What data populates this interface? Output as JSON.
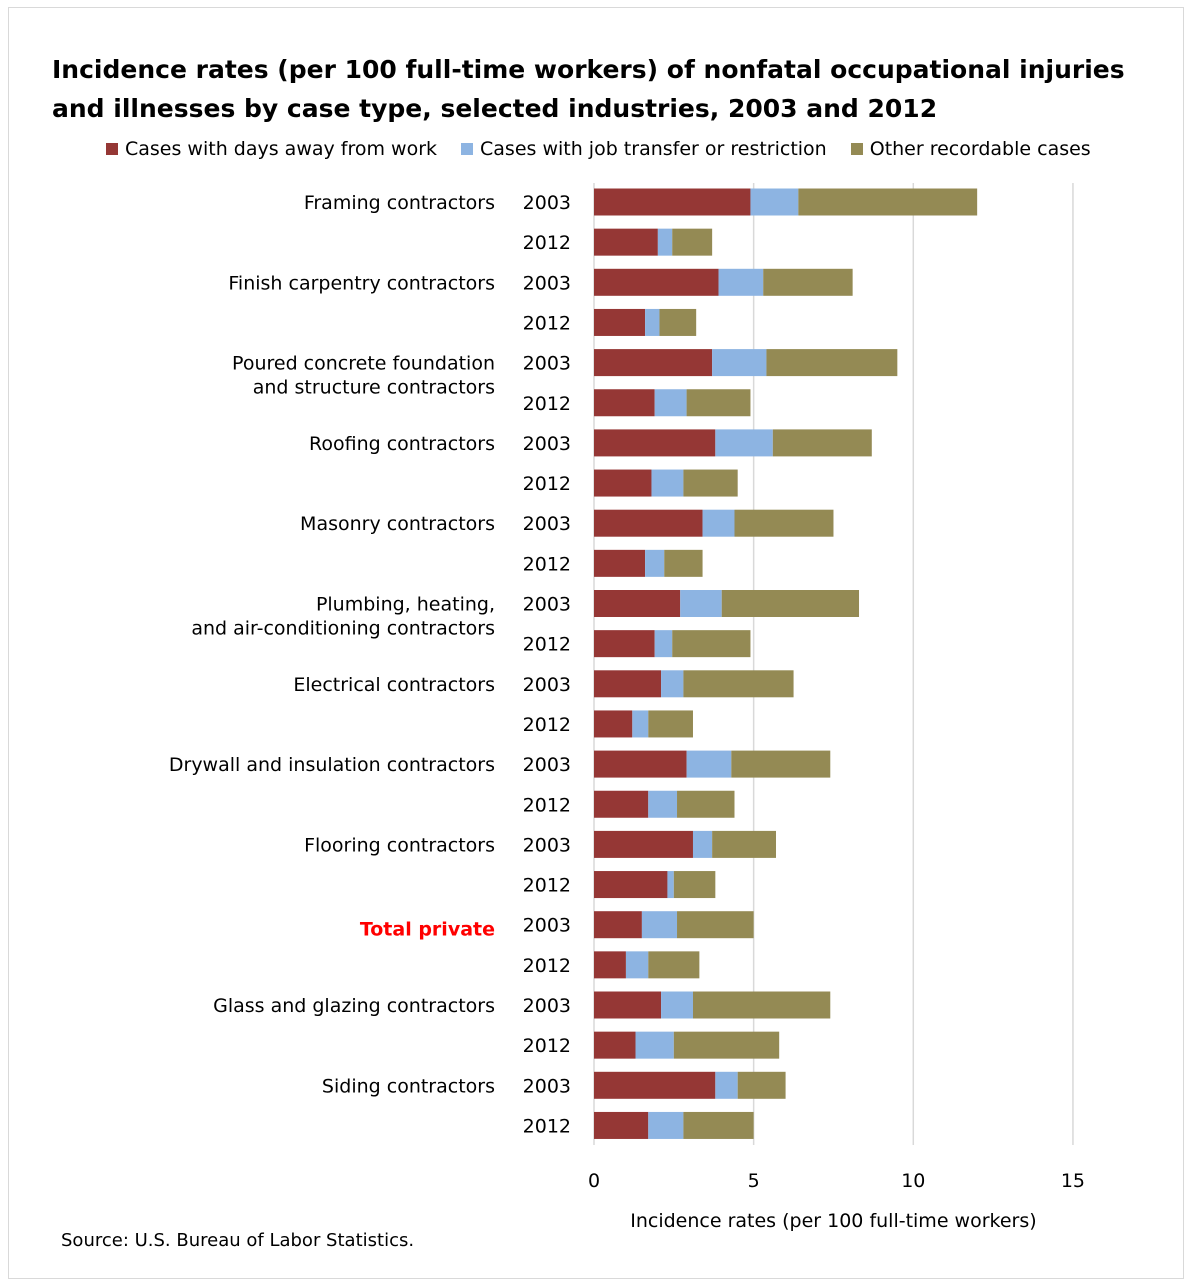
{
  "chart_data": {
    "type": "bar",
    "orientation": "horizontal",
    "stacked": true,
    "title": "Incidence rates (per 100 full-time workers) of nonfatal occupational injuries and illnesses by case type, selected industries, 2003 and 2012",
    "xlabel": "Incidence rates (per 100 full-time workers)",
    "xlim": [
      0,
      15
    ],
    "xticks": [
      "0",
      "5",
      "10",
      "15"
    ],
    "grid": true,
    "legend_position": "top",
    "series": [
      {
        "name": "Cases with days away from work",
        "color": "#953735"
      },
      {
        "name": "Cases with job transfer or restriction",
        "color": "#8db4e2"
      },
      {
        "name": "Other recordable cases",
        "color": "#948a54"
      }
    ],
    "groups": [
      {
        "industry": [
          "Framing contractors"
        ],
        "rows": [
          {
            "year": "2003",
            "values": [
              4.9,
              1.5,
              5.6
            ]
          },
          {
            "year": "2012",
            "values": [
              2.0,
              0.45,
              1.25
            ]
          }
        ]
      },
      {
        "industry": [
          "Finish carpentry contractors"
        ],
        "rows": [
          {
            "year": "2003",
            "values": [
              3.9,
              1.4,
              2.8
            ]
          },
          {
            "year": "2012",
            "values": [
              1.6,
              0.45,
              1.15
            ]
          }
        ]
      },
      {
        "industry": [
          "Poured concrete foundation",
          "and structure contractors"
        ],
        "rows": [
          {
            "year": "2003",
            "values": [
              3.7,
              1.7,
              4.1
            ]
          },
          {
            "year": "2012",
            "values": [
              1.9,
              1.0,
              2.0
            ]
          }
        ]
      },
      {
        "industry": [
          "Roofing contractors"
        ],
        "rows": [
          {
            "year": "2003",
            "values": [
              3.8,
              1.8,
              3.1
            ]
          },
          {
            "year": "2012",
            "values": [
              1.8,
              1.0,
              1.7
            ]
          }
        ]
      },
      {
        "industry": [
          "Masonry contractors"
        ],
        "rows": [
          {
            "year": "2003",
            "values": [
              3.4,
              1.0,
              3.1
            ]
          },
          {
            "year": "2012",
            "values": [
              1.6,
              0.6,
              1.2
            ]
          }
        ]
      },
      {
        "industry": [
          "Plumbing, heating,",
          "and air-conditioning contractors"
        ],
        "rows": [
          {
            "year": "2003",
            "values": [
              2.7,
              1.3,
              4.3
            ]
          },
          {
            "year": "2012",
            "values": [
              1.9,
              0.55,
              2.45
            ]
          }
        ]
      },
      {
        "industry": [
          "Electrical contractors"
        ],
        "rows": [
          {
            "year": "2003",
            "values": [
              2.1,
              0.7,
              3.45
            ]
          },
          {
            "year": "2012",
            "values": [
              1.2,
              0.5,
              1.4
            ]
          }
        ]
      },
      {
        "industry": [
          "Drywall and insulation contractors"
        ],
        "rows": [
          {
            "year": "2003",
            "values": [
              2.9,
              1.4,
              3.1
            ]
          },
          {
            "year": "2012",
            "values": [
              1.7,
              0.9,
              1.8
            ]
          }
        ]
      },
      {
        "industry": [
          "Flooring contractors"
        ],
        "rows": [
          {
            "year": "2003",
            "values": [
              3.1,
              0.6,
              2.0
            ]
          },
          {
            "year": "2012",
            "values": [
              2.3,
              0.2,
              1.3
            ]
          }
        ]
      },
      {
        "industry": [
          "Total private"
        ],
        "highlight": true,
        "rows": [
          {
            "year": "2003",
            "values": [
              1.5,
              1.1,
              2.4
            ]
          },
          {
            "year": "2012",
            "values": [
              1.0,
              0.7,
              1.6
            ]
          }
        ]
      },
      {
        "industry": [
          "Glass and glazing contractors"
        ],
        "rows": [
          {
            "year": "2003",
            "values": [
              2.1,
              1.0,
              4.3
            ]
          },
          {
            "year": "2012",
            "values": [
              1.3,
              1.2,
              3.3
            ]
          }
        ]
      },
      {
        "industry": [
          "Siding contractors"
        ],
        "rows": [
          {
            "year": "2003",
            "values": [
              3.8,
              0.7,
              1.5
            ]
          },
          {
            "year": "2012",
            "values": [
              1.7,
              1.1,
              2.2
            ]
          }
        ]
      }
    ]
  },
  "source_text": "Source: U.S. Bureau of Labor Statistics.",
  "colors": {
    "highlight_label": "#ff0000",
    "gridline": "#d9d9d9"
  }
}
